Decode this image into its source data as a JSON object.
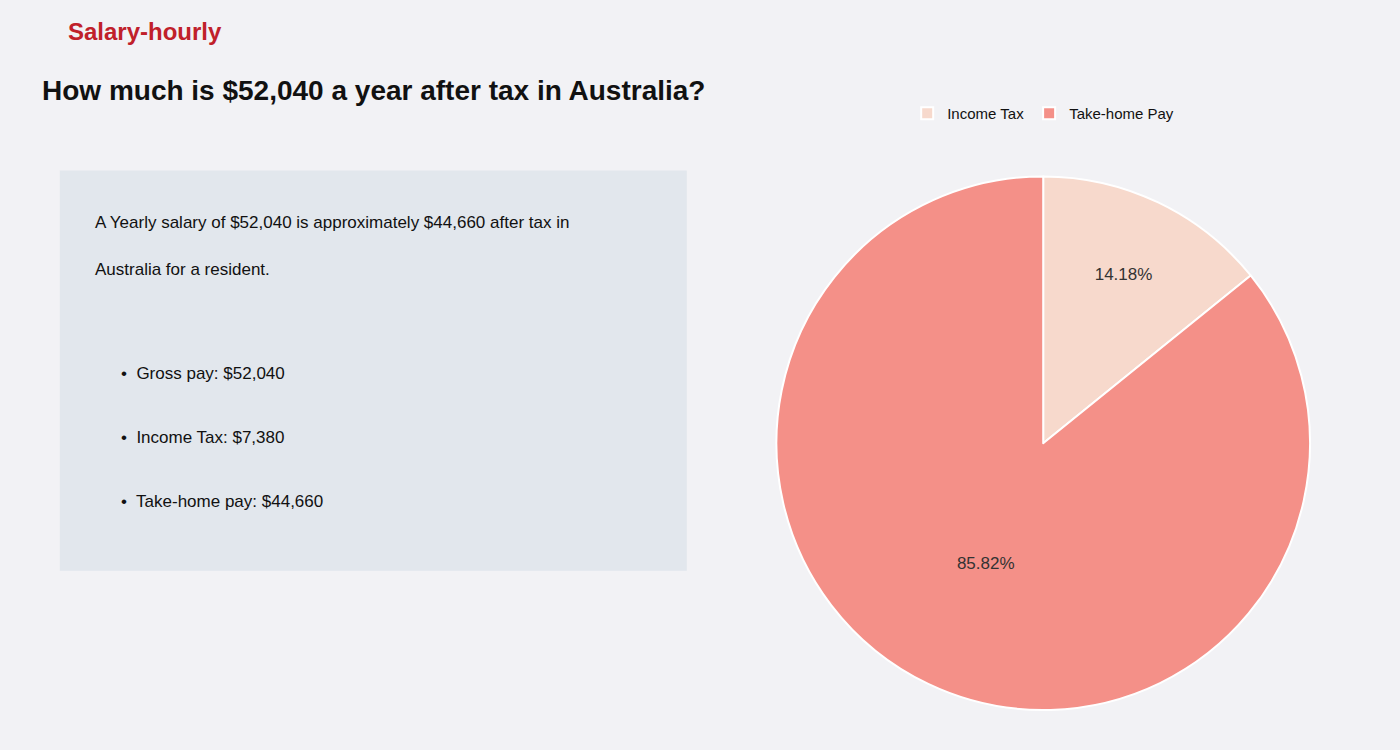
{
  "chart_data": {
    "type": "pie",
    "title": "How much is $52,040 a year after tax in Australia?",
    "annotations": [
      "Salary-hourly",
      "A Yearly salary of $52,040 is approximately $44,660 after tax in",
      "Australia for a resident.",
      "•  Gross pay: $52,040",
      "•  Income Tax: $7,380",
      "•  Take-home pay: $44,660"
    ],
    "categories": [
      "Income Tax",
      "Take-home Pay"
    ],
    "values": [
      14.18,
      85.82
    ],
    "value_labels": [
      "14.18%",
      "85.82%"
    ],
    "colors": [
      "#f7d9cc",
      "#f49088"
    ],
    "data_labels": true,
    "legend": "top"
  }
}
